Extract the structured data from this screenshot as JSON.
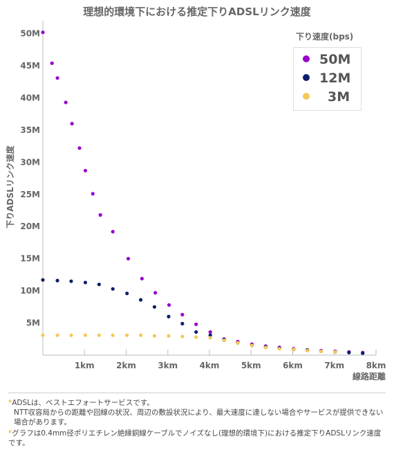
{
  "chart_data": {
    "type": "scatter",
    "title": "理想的環境下における推定下りADSLリンク速度",
    "xlabel": "線路距離",
    "ylabel": "下りADSLリンク速度",
    "xlim": [
      0,
      8
    ],
    "ylim": [
      0,
      52
    ],
    "x_ticks": [
      {
        "v": 1,
        "label": "1km"
      },
      {
        "v": 2,
        "label": "2km"
      },
      {
        "v": 3,
        "label": "3km"
      },
      {
        "v": 4,
        "label": "4km"
      },
      {
        "v": 5,
        "label": "5km"
      },
      {
        "v": 6,
        "label": "6km"
      },
      {
        "v": 7,
        "label": "7km"
      },
      {
        "v": 8,
        "label": "8km"
      }
    ],
    "y_ticks": [
      {
        "v": 5,
        "label": "5M"
      },
      {
        "v": 10,
        "label": "10M"
      },
      {
        "v": 15,
        "label": "15M"
      },
      {
        "v": 20,
        "label": "20M"
      },
      {
        "v": 25,
        "label": "25M"
      },
      {
        "v": 30,
        "label": "30M"
      },
      {
        "v": 35,
        "label": "35M"
      },
      {
        "v": 40,
        "label": "40M"
      },
      {
        "v": 45,
        "label": "45M"
      },
      {
        "v": 50,
        "label": "50M"
      }
    ],
    "legend_title": "下り速度(bps)",
    "legend_position": "top-right",
    "grid": false,
    "series": [
      {
        "name": "50M",
        "color": "#9900cc",
        "points": [
          [
            0.0,
            50.2
          ],
          [
            0.22,
            45.4
          ],
          [
            0.35,
            43.1
          ],
          [
            0.55,
            39.3
          ],
          [
            0.7,
            36.0
          ],
          [
            0.88,
            32.2
          ],
          [
            1.02,
            28.7
          ],
          [
            1.2,
            25.1
          ],
          [
            1.38,
            21.8
          ],
          [
            1.68,
            19.2
          ],
          [
            2.05,
            15.0
          ],
          [
            2.38,
            11.9
          ],
          [
            2.7,
            9.7
          ],
          [
            3.03,
            7.8
          ],
          [
            3.35,
            6.3
          ],
          [
            3.68,
            4.8
          ],
          [
            4.02,
            3.6
          ],
          [
            4.35,
            2.5
          ],
          [
            4.68,
            2.1
          ],
          [
            5.02,
            1.7
          ],
          [
            5.35,
            1.4
          ],
          [
            5.68,
            1.2
          ],
          [
            6.02,
            1.0
          ],
          [
            6.35,
            0.8
          ],
          [
            6.68,
            0.7
          ],
          [
            7.02,
            0.6
          ],
          [
            7.35,
            0.5
          ],
          [
            7.68,
            0.4
          ]
        ]
      },
      {
        "name": "12M",
        "color": "#0d1f6b",
        "points": [
          [
            0.0,
            11.7
          ],
          [
            0.35,
            11.6
          ],
          [
            0.68,
            11.5
          ],
          [
            1.02,
            11.3
          ],
          [
            1.35,
            11.0
          ],
          [
            1.68,
            10.3
          ],
          [
            2.02,
            9.6
          ],
          [
            2.35,
            8.6
          ],
          [
            2.68,
            7.5
          ],
          [
            3.02,
            6.0
          ],
          [
            3.35,
            4.9
          ],
          [
            3.68,
            3.6
          ],
          [
            4.02,
            3.1
          ],
          [
            4.35,
            2.4
          ],
          [
            4.68,
            1.9
          ],
          [
            5.02,
            1.5
          ],
          [
            5.35,
            1.3
          ],
          [
            5.68,
            1.1
          ],
          [
            6.02,
            0.9
          ],
          [
            6.35,
            0.8
          ],
          [
            6.68,
            0.6
          ],
          [
            7.02,
            0.5
          ],
          [
            7.35,
            0.4
          ],
          [
            7.68,
            0.3
          ]
        ]
      },
      {
        "name": "3M",
        "color": "#f5c85a",
        "points": [
          [
            0.0,
            3.1
          ],
          [
            0.35,
            3.1
          ],
          [
            0.68,
            3.1
          ],
          [
            1.02,
            3.1
          ],
          [
            1.35,
            3.1
          ],
          [
            1.68,
            3.1
          ],
          [
            2.02,
            3.1
          ],
          [
            2.35,
            3.1
          ],
          [
            2.68,
            3.0
          ],
          [
            3.02,
            3.0
          ],
          [
            3.35,
            2.9
          ],
          [
            3.68,
            2.8
          ],
          [
            4.02,
            2.7
          ],
          [
            4.35,
            2.3
          ],
          [
            4.68,
            1.9
          ],
          [
            5.02,
            1.5
          ],
          [
            5.35,
            1.2
          ],
          [
            5.68,
            1.0
          ],
          [
            6.02,
            0.9
          ],
          [
            6.35,
            0.7
          ],
          [
            6.68,
            0.6
          ],
          [
            7.02,
            0.5
          ]
        ]
      }
    ]
  },
  "notes": {
    "star": "*",
    "line1": "ADSLは、ベストエフォートサービスです。",
    "line1_sub": "NTT収容局からの距離や回線の状況、周辺の敷設状況により、最大速度に達しない場合やサービスが提供できない場合があります。",
    "line2": "グラフは0.4mm径ポリエチレン絶縁銅線ケーブルでノイズなし(理想的環境下)における推定下りADSLリンク速度です。"
  }
}
